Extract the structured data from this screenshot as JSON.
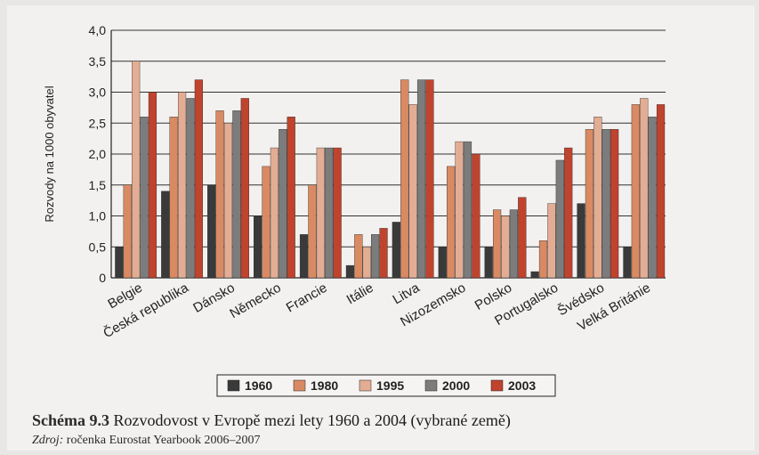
{
  "chart_data": {
    "type": "bar",
    "ylabel": "Rozvody na 1000 obyvatel",
    "xlabel": "",
    "ylim": [
      0,
      4.0
    ],
    "yticks": [
      "0",
      "0,5",
      "1,0",
      "1,5",
      "2,0",
      "2,5",
      "3,0",
      "3,5",
      "4,0"
    ],
    "grid": "horizontal",
    "legend_position": "bottom",
    "categories": [
      "Belgie",
      "Česká republika",
      "Dánsko",
      "Německo",
      "Francie",
      "Itálie",
      "Litva",
      "Nizozemsko",
      "Polsko",
      "Portugalsko",
      "Švédsko",
      "Velká Británie"
    ],
    "series": [
      {
        "name": "1960",
        "color": "#3a3a3a",
        "values": [
          0.5,
          1.4,
          1.5,
          1.0,
          0.7,
          0.2,
          0.9,
          0.5,
          0.5,
          0.1,
          1.2,
          0.5
        ]
      },
      {
        "name": "1980",
        "color": "#d98a63",
        "values": [
          1.5,
          2.6,
          2.7,
          1.8,
          1.5,
          0.7,
          3.2,
          1.8,
          1.1,
          0.6,
          2.4,
          2.8
        ]
      },
      {
        "name": "1995",
        "color": "#e3ad94",
        "values": [
          3.5,
          3.0,
          2.5,
          2.1,
          2.1,
          0.5,
          2.8,
          2.2,
          1.0,
          1.2,
          2.6,
          2.9
        ]
      },
      {
        "name": "2000",
        "color": "#7c7c7c",
        "values": [
          2.6,
          2.9,
          2.7,
          2.4,
          2.1,
          0.7,
          3.2,
          2.2,
          1.1,
          1.9,
          2.4,
          2.6
        ]
      },
      {
        "name": "2003",
        "color": "#c0432d",
        "values": [
          3.0,
          3.2,
          2.9,
          2.6,
          2.1,
          0.8,
          3.2,
          2.0,
          1.3,
          2.1,
          2.4,
          2.8
        ]
      }
    ]
  },
  "caption": {
    "label": "Schéma 9.3",
    "text": "Rozvodovost v Evropě mezi lety 1960 a 2004 (vybrané země)"
  },
  "source": {
    "label": "Zdroj:",
    "text": "ročenka Eurostat Yearbook 2006–2007"
  }
}
